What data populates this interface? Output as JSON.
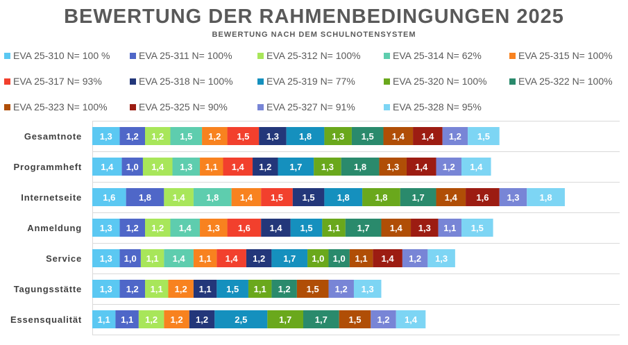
{
  "chart_data": {
    "type": "bar",
    "orientation": "horizontal",
    "stacked": true,
    "title": "BEWERTUNG DER RAHMENBEDINGUNGEN 2025",
    "subtitle": "BEWERTUNG NACH DEM SCHULNOTENSYSTEM",
    "xlabel": "",
    "ylabel": "",
    "xlim": [
      0,
      25
    ],
    "grid": true,
    "legend_position": "top",
    "categories": [
      "Gesamtnote",
      "Programmheft",
      "Internetseite",
      "Anmeldung",
      "Service",
      "Tagungsstätte",
      "Essensqualität"
    ],
    "series": [
      {
        "name": "EVA 25-310  N= 100 %",
        "color": "#5BC8F2",
        "values": [
          1.3,
          1.4,
          1.6,
          1.3,
          1.3,
          1.3,
          1.1
        ],
        "labels": [
          "1,3",
          "1,4",
          "1,6",
          "1,3",
          "1,3",
          "1,3",
          "1,1"
        ]
      },
      {
        "name": "EVA 25-311  N= 100%",
        "color": "#4F67C8",
        "values": [
          1.2,
          1.0,
          1.8,
          1.2,
          1.0,
          1.2,
          1.1
        ],
        "labels": [
          "1,2",
          "1,0",
          "1,8",
          "1,2",
          "1,0",
          "1,2",
          "1,1"
        ]
      },
      {
        "name": "EVA 25-312  N= 100%",
        "color": "#A8E65A",
        "values": [
          1.2,
          1.4,
          1.4,
          1.2,
          1.1,
          1.1,
          1.2
        ],
        "labels": [
          "1,2",
          "1,4",
          "1,4",
          "1,2",
          "1,1",
          "1,1",
          "1,2"
        ]
      },
      {
        "name": "EVA 25-314  N= 62%",
        "color": "#5ECDAE",
        "values": [
          1.5,
          1.3,
          1.8,
          1.4,
          1.4,
          null,
          null
        ],
        "labels": [
          "1,5",
          "1,3",
          "1,8",
          "1,4",
          "1,4",
          null,
          null
        ]
      },
      {
        "name": "EVA 25-315  N= 100%",
        "color": "#F8821F",
        "values": [
          1.2,
          1.1,
          1.4,
          1.3,
          1.1,
          1.2,
          1.2
        ],
        "labels": [
          "1,2",
          "1,1",
          "1,4",
          "1,3",
          "1,1",
          "1,2",
          "1,2"
        ]
      },
      {
        "name": "EVA 25-317  N= 93%",
        "color": "#F2402D",
        "values": [
          1.5,
          1.4,
          1.5,
          1.6,
          1.4,
          null,
          null
        ],
        "labels": [
          "1,5",
          "1,4",
          "1,5",
          "1,6",
          "1,4",
          null,
          null
        ]
      },
      {
        "name": "EVA 25-318  N= 100%",
        "color": "#23377A",
        "values": [
          1.3,
          1.2,
          1.5,
          1.4,
          1.2,
          1.1,
          1.2
        ],
        "labels": [
          "1,3",
          "1,2",
          "1,5",
          "1,4",
          "1,2",
          "1,1",
          "1,2"
        ]
      },
      {
        "name": "EVA 25-319  N= 77%",
        "color": "#1590BE",
        "values": [
          1.8,
          1.7,
          1.8,
          1.5,
          1.7,
          1.5,
          2.5
        ],
        "labels": [
          "1,8",
          "1,7",
          "1,8",
          "1,5",
          "1,7",
          "1,5",
          "2,5"
        ]
      },
      {
        "name": "EVA 25-320  N= 100%",
        "color": "#6AA81C",
        "values": [
          1.3,
          1.3,
          1.8,
          1.1,
          1.0,
          1.1,
          1.7
        ],
        "labels": [
          "1,3",
          "1,3",
          "1,8",
          "1,1",
          "1,0",
          "1,1",
          "1,7"
        ]
      },
      {
        "name": "EVA 25-322  N= 100%",
        "color": "#2A8A6C",
        "values": [
          1.5,
          1.8,
          1.7,
          1.7,
          1.0,
          1.2,
          1.7
        ],
        "labels": [
          "1,5",
          "1,8",
          "1,7",
          "1,7",
          "1,0",
          "1,2",
          "1,7"
        ]
      },
      {
        "name": "EVA 25-323  N= 100%",
        "color": "#B04E06",
        "values": [
          1.4,
          1.3,
          1.4,
          1.4,
          1.1,
          1.5,
          1.5
        ],
        "labels": [
          "1,4",
          "1,3",
          "1,4",
          "1,4",
          "1,1",
          "1,5",
          "1,5"
        ]
      },
      {
        "name": "EVA 25-325  N= 90%",
        "color": "#9C1C12",
        "values": [
          1.4,
          1.4,
          1.6,
          1.3,
          1.4,
          null,
          null
        ],
        "labels": [
          "1,4",
          "1,4",
          "1,6",
          "1,3",
          "1,4",
          null,
          null
        ]
      },
      {
        "name": "EVA 25-327  N= 91%",
        "color": "#7885D6",
        "values": [
          1.2,
          1.2,
          1.3,
          1.1,
          1.2,
          1.2,
          1.2
        ],
        "labels": [
          "1,2",
          "1,2",
          "1,3",
          "1,1",
          "1,2",
          "1,2",
          "1,2"
        ]
      },
      {
        "name": "EVA 25-328  N= 95%",
        "color": "#7DD5F4",
        "values": [
          1.5,
          1.4,
          1.8,
          1.5,
          1.3,
          1.3,
          1.4
        ],
        "labels": [
          "1,5",
          "1,4",
          "1,8",
          "1,5",
          "1,3",
          "1,3",
          "1,4"
        ]
      }
    ]
  }
}
